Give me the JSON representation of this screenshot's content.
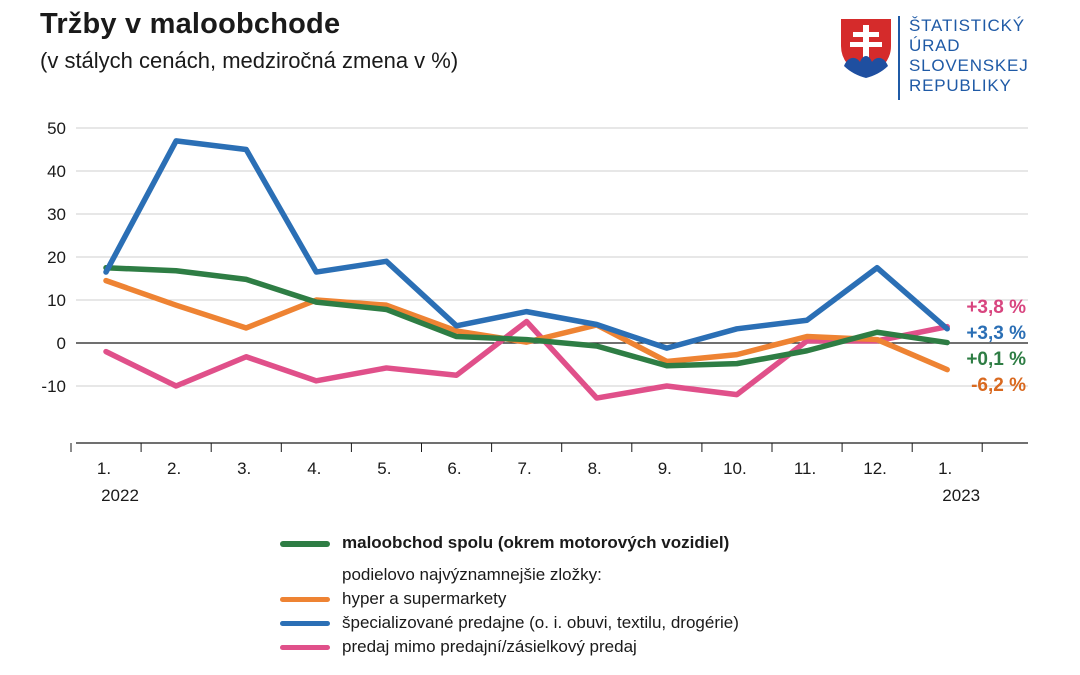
{
  "header": {
    "title": "Tržby v maloobchode",
    "subtitle": "(v stálych cenách, medziročná zmena v %)"
  },
  "logo": {
    "lines": [
      "ŠTATISTICKÝ",
      "ÚRAD",
      "SLOVENSKEJ",
      "REPUBLIKY"
    ],
    "color": "#1f5aa6"
  },
  "legend": {
    "total_label": "maloobchod spolu (okrem motorových vozidiel)",
    "components_note": "podielovo najvýznamnejšie zložky:",
    "items": [
      "hyper a supermarkety",
      "špecializované predajne (o. i. obuvi, textilu, drogérie)",
      "predaj mimo predajní/zásielkový predaj"
    ]
  },
  "chart_data": {
    "type": "line",
    "title": "Tržby v maloobchode",
    "subtitle": "(v stálych cenách, medziročná zmena v %)",
    "xlabel": "",
    "ylabel": "",
    "categories": [
      "1.",
      "2.",
      "3.",
      "4.",
      "5.",
      "6.",
      "7.",
      "8.",
      "9.",
      "10.",
      "11.",
      "12.",
      "1."
    ],
    "year_labels": [
      {
        "index": 0,
        "label": "2022"
      },
      {
        "index": 12,
        "label": "2023"
      }
    ],
    "y_ticks": [
      50,
      40,
      30,
      20,
      10,
      0,
      -10
    ],
    "ylim": [
      -23,
      50
    ],
    "grid": true,
    "series": [
      {
        "name": "predaj mimo predajní/zásielkový predaj",
        "color": "#e0508a",
        "values": [
          -2,
          -10,
          -3.2,
          -8.8,
          -5.8,
          -7.5,
          5,
          -12.8,
          -10,
          -12,
          0.5,
          0.5,
          3.8
        ],
        "end_label": "+3,8 %"
      },
      {
        "name": "hyper a supermarkety",
        "color": "#ee8333",
        "values": [
          14.5,
          8.8,
          3.5,
          10,
          8.8,
          2.8,
          0.2,
          4.2,
          -4.3,
          -2.7,
          1.5,
          0.8,
          -6.2
        ],
        "end_label": "-6,2 %"
      },
      {
        "name": "maloobchod spolu (okrem motorových vozidiel)",
        "color": "#2e7d44",
        "values": [
          17.5,
          16.8,
          14.8,
          9.5,
          7.8,
          1.5,
          0.8,
          -0.7,
          -5.3,
          -4.8,
          -1.8,
          2.5,
          0.1
        ],
        "end_label": "+0,1 %"
      },
      {
        "name": "špecializované predajne (o. i. obuvi, textilu, drogérie)",
        "color": "#2b6fb5",
        "values": [
          16.5,
          47,
          45,
          16.5,
          19,
          4,
          7.3,
          4.3,
          -1.2,
          3.3,
          5.3,
          17.5,
          3.3
        ],
        "end_label": "+3,3 %"
      }
    ],
    "end_labels_order": [
      {
        "text": "+3,8 %",
        "color": "#d8457f"
      },
      {
        "text": "+3,3 %",
        "color": "#2b6fb5"
      },
      {
        "text": "+0,1 %",
        "color": "#2e7d44"
      },
      {
        "text": "-6,2 %",
        "color": "#d9691f"
      }
    ]
  }
}
